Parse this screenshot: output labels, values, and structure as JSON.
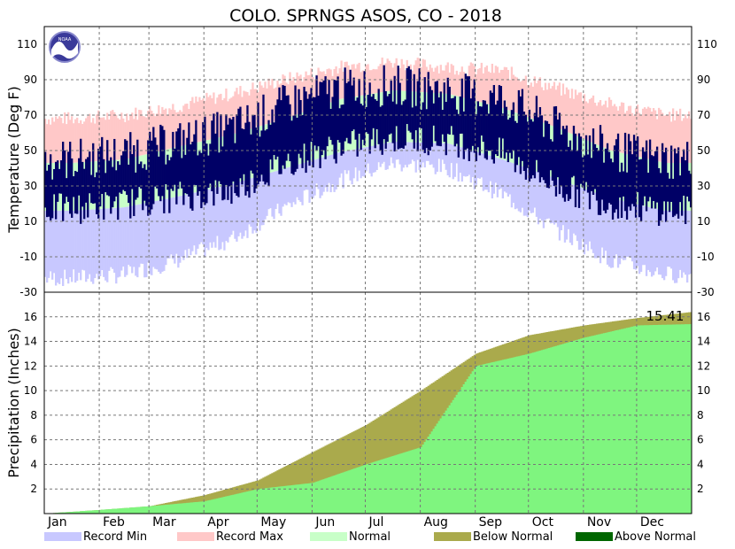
{
  "title": "COLO. SPRNGS ASOS, CO - 2018",
  "logo_text": "NOAA",
  "colors": {
    "record_min": "#c8c8ff",
    "record_max": "#ffc8c8",
    "normal": "#c8ffc8",
    "observed": "#000066",
    "below_normal": "#aaaa4c",
    "above_normal": "#006600",
    "observed_precip": "#7ff57f"
  },
  "chart_data": [
    {
      "type": "bar",
      "name": "temperature",
      "ylabel": "Temperature (Deg F)",
      "ylim": [
        -30,
        120
      ],
      "yticks": [
        -30,
        -10,
        10,
        30,
        50,
        70,
        90,
        110
      ],
      "months": [
        "Jan",
        "Feb",
        "Mar",
        "Apr",
        "May",
        "Jun",
        "Jul",
        "Aug",
        "Sep",
        "Oct",
        "Nov",
        "Dec"
      ],
      "grid": true,
      "monthly": {
        "record_max": [
          68,
          70,
          75,
          82,
          90,
          97,
          100,
          97,
          95,
          85,
          76,
          70
        ],
        "record_min": [
          -22,
          -20,
          -12,
          0,
          18,
          33,
          43,
          40,
          25,
          5,
          -12,
          -20
        ],
        "normal_high": [
          43,
          45,
          52,
          59,
          68,
          79,
          84,
          82,
          74,
          63,
          50,
          43
        ],
        "normal_low": [
          16,
          18,
          24,
          31,
          40,
          49,
          55,
          54,
          45,
          34,
          23,
          16
        ],
        "observed_high": [
          45,
          48,
          55,
          62,
          76,
          85,
          87,
          83,
          79,
          63,
          50,
          45
        ],
        "observed_low": [
          17,
          20,
          24,
          27,
          43,
          52,
          57,
          56,
          48,
          30,
          20,
          16
        ]
      }
    },
    {
      "type": "area",
      "name": "precipitation",
      "ylabel": "Precipitation (Inches)",
      "ylim": [
        0,
        18
      ],
      "yticks": [
        2,
        4,
        6,
        8,
        10,
        12,
        14,
        16
      ],
      "grid": true,
      "total_label": "15.41",
      "normal_cumulative_end_of_month": [
        0.3,
        0.6,
        1.5,
        2.7,
        5.0,
        7.2,
        10.0,
        13.0,
        14.5,
        15.3,
        15.9,
        16.4
      ],
      "observed_cumulative_end_of_month": [
        0.3,
        0.6,
        1.0,
        2.0,
        2.5,
        4.0,
        5.4,
        12.0,
        13.0,
        14.3,
        15.3,
        15.41
      ]
    }
  ],
  "legend": [
    {
      "label": "Record Min",
      "key": "record_min"
    },
    {
      "label": "Record Max",
      "key": "record_max"
    },
    {
      "label": "Normal",
      "key": "normal"
    },
    {
      "label": "Below Normal",
      "key": "below_normal"
    },
    {
      "label": "Above Normal",
      "key": "above_normal"
    }
  ]
}
